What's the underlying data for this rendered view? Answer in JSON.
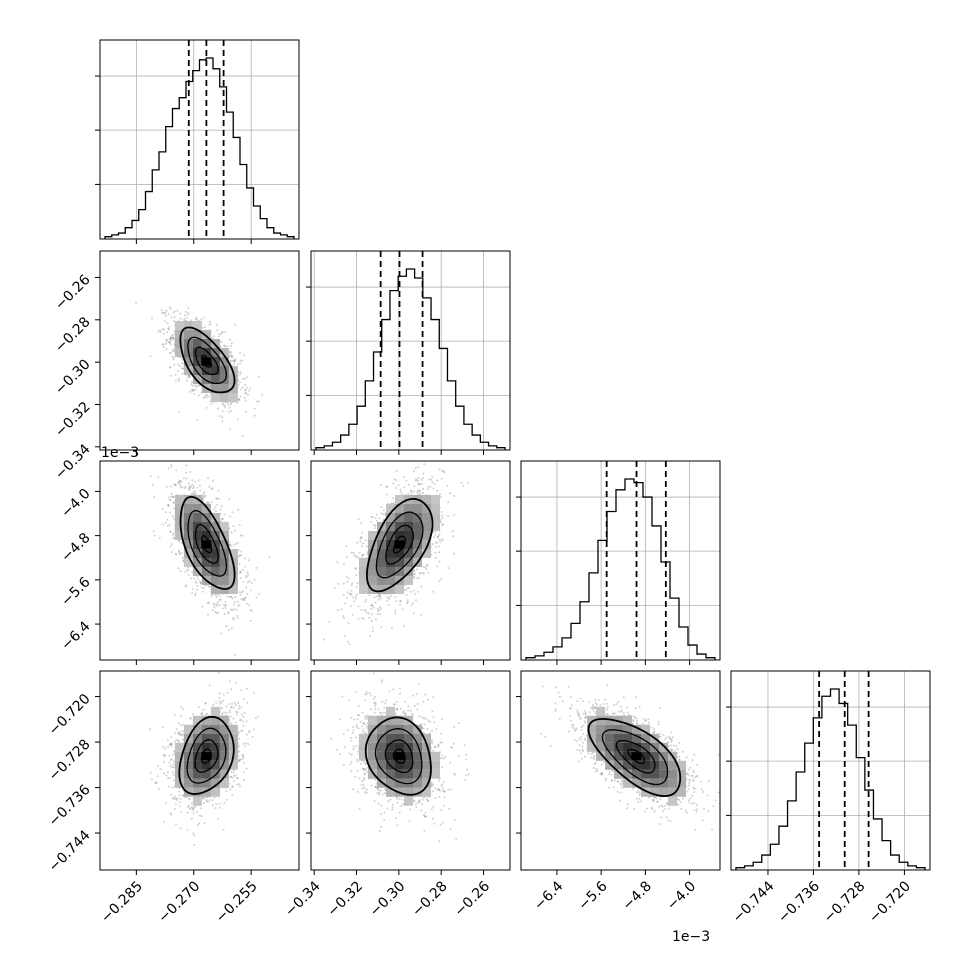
{
  "chart_data": {
    "type": "corner",
    "variables": [
      {
        "ticks": [
          -0.285,
          -0.27,
          -0.255
        ],
        "tick_labels": [
          "−0.285",
          "−0.270",
          "−0.255"
        ],
        "range": [
          -0.2945,
          -0.2425
        ]
      },
      {
        "ticks": [
          -0.34,
          -0.32,
          -0.3,
          -0.28,
          -0.26
        ],
        "tick_labels": [
          "−0.34",
          "−0.32",
          "−0.30",
          "−0.28",
          "−0.26"
        ],
        "range": [
          -0.3415,
          -0.2475
        ]
      },
      {
        "ticks": [
          -0.0064,
          -0.0056,
          -0.0048,
          -0.004
        ],
        "tick_labels": [
          "−6.4",
          "−5.6",
          "−4.8",
          "−4.0"
        ],
        "range": [
          -0.00705,
          -0.00345
        ],
        "offset_text": "1e−3"
      },
      {
        "ticks": [
          -0.744,
          -0.736,
          -0.728,
          -0.72
        ],
        "tick_labels": [
          "−0.744",
          "−0.736",
          "−0.728",
          "−0.720"
        ],
        "range": [
          -0.7505,
          -0.7155
        ]
      }
    ],
    "marginal_quantiles": [
      {
        "q16": -0.2713,
        "q50": -0.2667,
        "q84": -0.2622
      },
      {
        "q16": -0.3086,
        "q50": -0.2997,
        "q84": -0.2888
      },
      {
        "q16": -0.0055,
        "q50": -0.00496,
        "q84": -0.00443
      },
      {
        "q16": -0.735,
        "q50": -0.7305,
        "q84": -0.7263
      }
    ],
    "histograms": [
      [
        1,
        2,
        3,
        6,
        10,
        16,
        26,
        38,
        48,
        62,
        72,
        78,
        87,
        93,
        99,
        100,
        94,
        84,
        70,
        56,
        41,
        28,
        18,
        11,
        6,
        3,
        2,
        1
      ],
      [
        1,
        2,
        4,
        8,
        14,
        24,
        38,
        54,
        72,
        88,
        96,
        100,
        95,
        84,
        72,
        56,
        38,
        24,
        14,
        8,
        4,
        2,
        1
      ],
      [
        1,
        2,
        4,
        7,
        12,
        20,
        32,
        48,
        66,
        82,
        94,
        100,
        98,
        90,
        74,
        54,
        34,
        18,
        8,
        3,
        1
      ],
      [
        1,
        2,
        4,
        8,
        14,
        24,
        38,
        54,
        70,
        84,
        96,
        100,
        92,
        80,
        62,
        44,
        28,
        16,
        8,
        4,
        2,
        1
      ]
    ],
    "joint": [
      {
        "row": 1,
        "col": 0,
        "corr": -0.6
      },
      {
        "row": 2,
        "col": 0,
        "corr": -0.6
      },
      {
        "row": 2,
        "col": 1,
        "corr": 0.55
      },
      {
        "row": 3,
        "col": 0,
        "corr": 0.3
      },
      {
        "row": 3,
        "col": 1,
        "corr": -0.2
      },
      {
        "row": 3,
        "col": 2,
        "corr": -0.65
      }
    ],
    "grid": true,
    "histogram_ticks": [
      0.333,
      0.667,
      1.0
    ]
  }
}
